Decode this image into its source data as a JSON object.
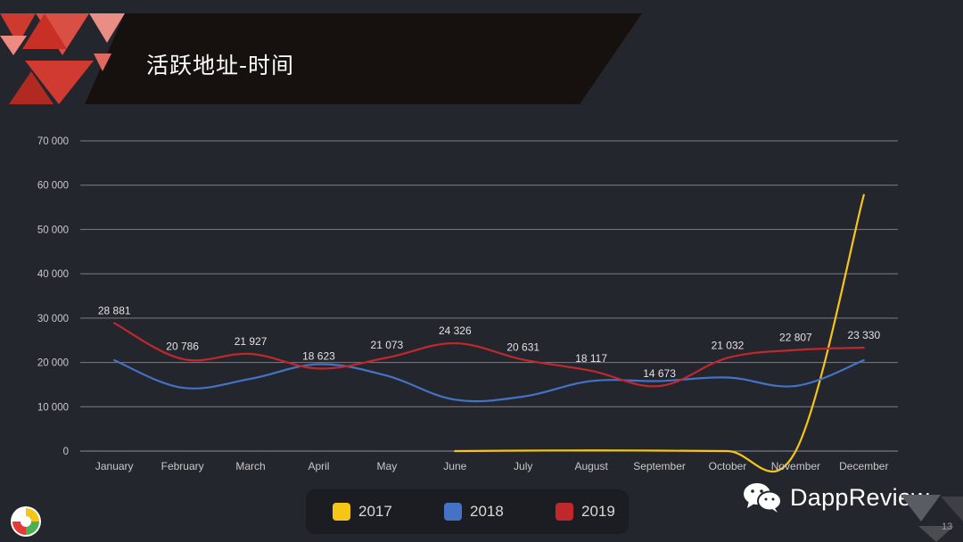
{
  "header": {
    "title": "活跃地址-时间"
  },
  "chart_data": {
    "type": "line",
    "categories": [
      "January",
      "February",
      "March",
      "April",
      "May",
      "June",
      "July",
      "August",
      "September",
      "October",
      "November",
      "December"
    ],
    "ylim": [
      0,
      70000
    ],
    "yticks": [
      0,
      10000,
      20000,
      30000,
      40000,
      50000,
      60000,
      70000
    ],
    "ytick_labels": [
      "0",
      "10 000",
      "20 000",
      "30 000",
      "40 000",
      "50 000",
      "60 000",
      "70 000"
    ],
    "grid": true,
    "legend_position": "bottom",
    "series": [
      {
        "name": "2017",
        "color": "#f5c518",
        "values": [
          null,
          null,
          null,
          null,
          null,
          0,
          100,
          150,
          100,
          0,
          0,
          57800
        ]
      },
      {
        "name": "2018",
        "color": "#4472c4",
        "values": [
          20500,
          14300,
          16300,
          19600,
          17000,
          11600,
          12300,
          15800,
          15800,
          16600,
          14700,
          20500
        ]
      },
      {
        "name": "2019",
        "color": "#c0282d",
        "values": [
          28881,
          20786,
          21927,
          18623,
          21073,
          24326,
          20631,
          18117,
          14673,
          21032,
          22807,
          23330
        ],
        "data_labels": [
          "28 881",
          "20 786",
          "21 927",
          "18 623",
          "21 073",
          "24 326",
          "20 631",
          "18 117",
          "14 673",
          "21 032",
          "22 807",
          "23 330"
        ]
      }
    ]
  },
  "legend": [
    {
      "label": "2017",
      "color": "#f5c518"
    },
    {
      "label": "2018",
      "color": "#4472c4"
    },
    {
      "label": "2019",
      "color": "#c0282d"
    }
  ],
  "brand": {
    "name": "DappReview",
    "icon": "wechat-icon"
  },
  "page_number": "13"
}
